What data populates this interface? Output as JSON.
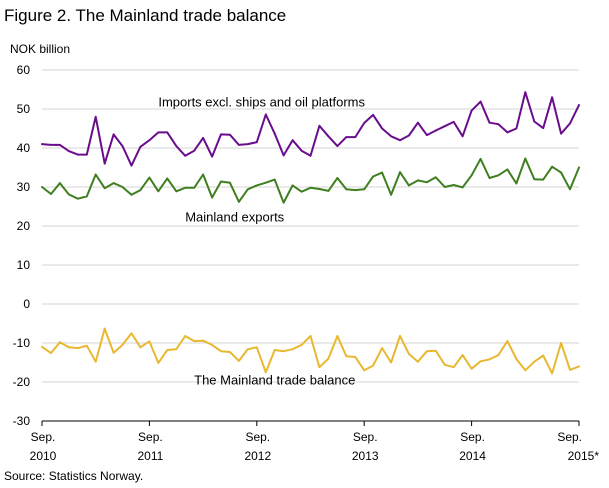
{
  "figure": {
    "title": "Figure 2. The Mainland trade balance",
    "source": "Source: Statistics Norway."
  },
  "chart_data": {
    "type": "line",
    "ylabel": "NOK billion",
    "ylim": [
      -30,
      60
    ],
    "yticks": [
      -30,
      -20,
      -10,
      0,
      10,
      20,
      30,
      40,
      50,
      60
    ],
    "grid": "horizontal",
    "x": [
      "2010-09",
      "2010-10",
      "2010-11",
      "2010-12",
      "2011-01",
      "2011-02",
      "2011-03",
      "2011-04",
      "2011-05",
      "2011-06",
      "2011-07",
      "2011-08",
      "2011-09",
      "2011-10",
      "2011-11",
      "2011-12",
      "2012-01",
      "2012-02",
      "2012-03",
      "2012-04",
      "2012-05",
      "2012-06",
      "2012-07",
      "2012-08",
      "2012-09",
      "2012-10",
      "2012-11",
      "2012-12",
      "2013-01",
      "2013-02",
      "2013-03",
      "2013-04",
      "2013-05",
      "2013-06",
      "2013-07",
      "2013-08",
      "2013-09",
      "2013-10",
      "2013-11",
      "2013-12",
      "2014-01",
      "2014-02",
      "2014-03",
      "2014-04",
      "2014-05",
      "2014-06",
      "2014-07",
      "2014-08",
      "2014-09",
      "2014-10",
      "2014-11",
      "2014-12",
      "2015-01",
      "2015-02",
      "2015-03",
      "2015-04",
      "2015-05",
      "2015-06",
      "2015-07",
      "2015-08",
      "2015-09"
    ],
    "xtick_labels": [
      {
        "x": "2010-09",
        "month": "Sep.",
        "year": "2010"
      },
      {
        "x": "2011-09",
        "month": "Sep.",
        "year": "2011"
      },
      {
        "x": "2012-09",
        "month": "Sep.",
        "year": "2012"
      },
      {
        "x": "2013-09",
        "month": "Sep.",
        "year": "2013"
      },
      {
        "x": "2014-09",
        "month": "Sep.",
        "year": "2014"
      },
      {
        "x": "2015-09",
        "month": "Sep.",
        "year": "2015*"
      }
    ],
    "series": [
      {
        "name": "Imports excl. ships and oil platforms",
        "color": "#6a0d8c",
        "values": [
          41.0,
          40.8,
          40.8,
          39.2,
          38.3,
          38.3,
          48.0,
          36.0,
          43.5,
          40.5,
          35.5,
          40.3,
          42.0,
          44.0,
          44.0,
          40.5,
          38.0,
          39.3,
          42.6,
          37.8,
          43.5,
          43.4,
          40.8,
          41.0,
          41.5,
          48.6,
          43.7,
          38.1,
          42.0,
          39.3,
          38.0,
          45.7,
          43.0,
          40.5,
          42.8,
          42.8,
          46.4,
          48.5,
          45.0,
          43.0,
          42.0,
          43.2,
          46.5,
          43.3,
          44.5,
          45.6,
          46.7,
          43.0,
          49.6,
          51.9,
          46.5,
          46.1,
          44.0,
          45.0,
          54.3,
          46.8,
          45.1,
          53.0,
          43.7,
          46.3,
          51.0
        ]
      },
      {
        "name": "Mainland exports",
        "color": "#3f7f1f",
        "values": [
          30.0,
          28.2,
          31.0,
          28.1,
          27.0,
          27.6,
          33.2,
          29.7,
          31.0,
          30.0,
          28.0,
          29.2,
          32.4,
          28.9,
          32.2,
          28.9,
          29.8,
          29.8,
          33.2,
          27.3,
          31.4,
          31.1,
          26.2,
          29.4,
          30.4,
          31.1,
          31.9,
          26.0,
          30.4,
          28.8,
          29.8,
          29.5,
          29.0,
          32.3,
          29.4,
          29.2,
          29.4,
          32.7,
          33.7,
          28.0,
          33.8,
          30.4,
          31.7,
          31.2,
          32.5,
          30.0,
          30.5,
          29.9,
          33.0,
          37.2,
          32.3,
          33.0,
          34.5,
          30.9,
          37.3,
          32.0,
          31.9,
          35.2,
          33.7,
          29.4,
          35.0
        ]
      },
      {
        "name": "The Mainland trade balance",
        "color": "#e8b830",
        "values": [
          -11.0,
          -12.6,
          -9.8,
          -11.1,
          -11.3,
          -10.7,
          -14.8,
          -6.3,
          -12.5,
          -10.5,
          -7.5,
          -11.1,
          -9.6,
          -15.1,
          -11.8,
          -11.6,
          -8.2,
          -9.5,
          -9.4,
          -10.5,
          -12.1,
          -12.3,
          -14.6,
          -11.6,
          -11.1,
          -17.5,
          -11.8,
          -12.1,
          -11.6,
          -10.5,
          -8.2,
          -16.2,
          -14.0,
          -8.2,
          -13.4,
          -13.6,
          -17.0,
          -15.8,
          -11.3,
          -15.0,
          -8.2,
          -12.8,
          -14.8,
          -12.1,
          -12.0,
          -15.6,
          -16.2,
          -13.1,
          -16.6,
          -14.7,
          -14.2,
          -13.1,
          -9.5,
          -14.1,
          -17.0,
          -14.8,
          -13.2,
          -17.8,
          -10.0,
          -16.9,
          -16.0
        ]
      }
    ],
    "annotations": [
      {
        "text": "Imports excl. ships and oil platforms",
        "x": "2011-10",
        "y": 50.7
      },
      {
        "text": "Mainland exports",
        "x": "2012-01",
        "y": 21.2
      },
      {
        "text": "The Mainland trade balance",
        "x": "2012-02",
        "y": -20.6
      }
    ]
  }
}
